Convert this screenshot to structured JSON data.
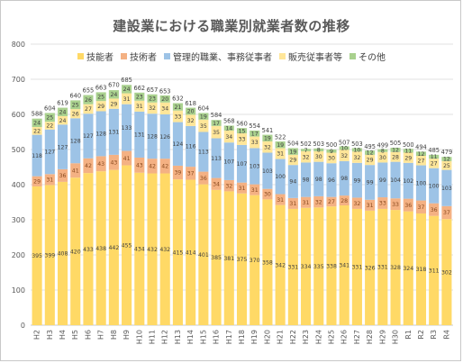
{
  "chart_data": {
    "type": "bar",
    "stacked": true,
    "title": "建設業における職業別就業者数の推移",
    "categories": [
      "H2",
      "H3",
      "H4",
      "H5",
      "H6",
      "H7",
      "H8",
      "H9",
      "H10",
      "H11",
      "H12",
      "H13",
      "H14",
      "H15",
      "H16",
      "H17",
      "H18",
      "H19",
      "H20",
      "H21",
      "H22",
      "H23",
      "H24",
      "H25",
      "H26",
      "H27",
      "H28",
      "H29",
      "H30",
      "R1",
      "R2",
      "R3",
      "R4"
    ],
    "totals": [
      588,
      604,
      619,
      640,
      655,
      663,
      670,
      685,
      662,
      657,
      653,
      632,
      618,
      604,
      584,
      568,
      560,
      554,
      541,
      522,
      504,
      502,
      503,
      500,
      507,
      503,
      495,
      499,
      505,
      500,
      494,
      485,
      479
    ],
    "series": [
      {
        "name": "技能者",
        "color": "#FFD966",
        "values": [
          395,
          399,
          408,
          420,
          433,
          438,
          442,
          455,
          434,
          432,
          432,
          415,
          414,
          401,
          385,
          381,
          375,
          370,
          358,
          342,
          331,
          334,
          335,
          338,
          341,
          331,
          326,
          331,
          328,
          324,
          318,
          311,
          302
        ]
      },
      {
        "name": "技術者",
        "color": "#F4B183",
        "values": [
          29,
          31,
          36,
          41,
          42,
          43,
          43,
          41,
          43,
          42,
          42,
          39,
          37,
          36,
          34,
          32,
          31,
          31,
          30,
          31,
          31,
          31,
          32,
          27,
          28,
          32,
          31,
          33,
          33,
          36,
          37,
          36,
          37
        ]
      },
      {
        "name": "管理的職業、事務従事者",
        "color": "#9DC3E6",
        "values": [
          118,
          127,
          127,
          128,
          127,
          128,
          131,
          133,
          131,
          128,
          126,
          124,
          116,
          113,
          113,
          107,
          107,
          103,
          103,
          100,
          94,
          98,
          98,
          96,
          98,
          99,
          99,
          99,
          104,
          102,
          100,
          100,
          103
        ]
      },
      {
        "name": "販売従事者等",
        "color": "#FFE699",
        "values": [
          22,
          22,
          24,
          26,
          27,
          29,
          29,
          31,
          31,
          32,
          34,
          33,
          32,
          35,
          35,
          34,
          33,
          33,
          32,
          31,
          29,
          32,
          30,
          30,
          32,
          32,
          29,
          30,
          28,
          29,
          27,
          27,
          25
        ]
      },
      {
        "name": "その他",
        "color": "#A9D18E",
        "values": [
          24,
          25,
          24,
          25,
          26,
          25,
          24,
          24,
          23,
          23,
          20,
          21,
          20,
          19,
          17,
          14,
          15,
          17,
          19,
          19,
          19,
          7,
          8,
          9,
          10,
          10,
          12,
          8,
          12,
          11,
          12,
          11,
          12
        ]
      }
    ],
    "ylim": [
      0,
      800
    ],
    "yticks": [
      0,
      100,
      200,
      300,
      400,
      500,
      600,
      700,
      800
    ],
    "grid": true,
    "legend_position": "top"
  }
}
